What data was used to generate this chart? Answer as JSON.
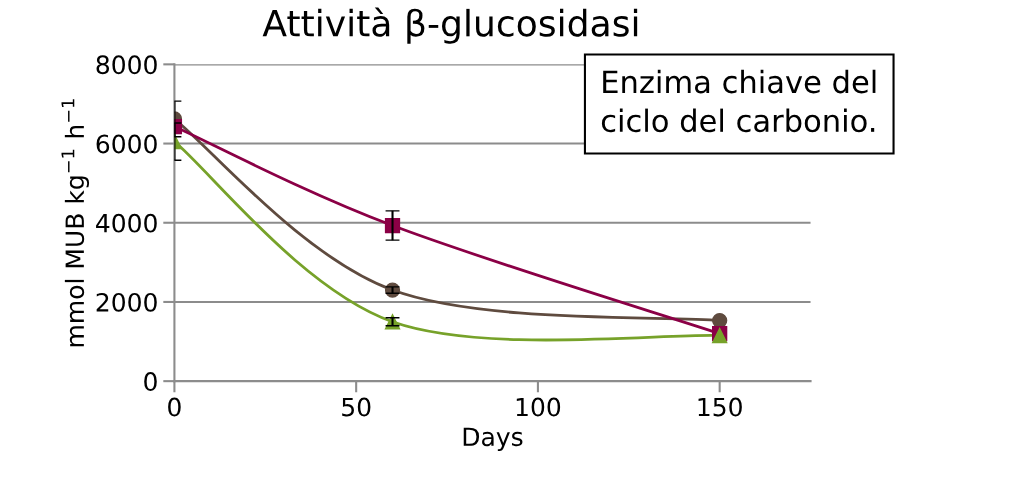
{
  "chart_data": {
    "type": "line",
    "title": "Attività β-glucosidasi",
    "xlabel": "Days",
    "ylabel": "mmol MUB kg$^{−1}$ h$^{−1}$",
    "x": [
      0,
      60,
      150
    ],
    "series": [
      {
        "color": "#5f4b3f",
        "marker": "circle",
        "values": [
          6620,
          2300,
          1530
        ],
        "errors": [
          450,
          80,
          null
        ]
      },
      {
        "color": "#8b0046",
        "marker": "square",
        "values": [
          6430,
          3930,
          1200
        ],
        "errors": [
          null,
          370,
          null
        ]
      },
      {
        "color": "#77a22a",
        "marker": "triangle",
        "values": [
          6050,
          1500,
          1150
        ],
        "errors": [
          470,
          100,
          null
        ]
      }
    ],
    "xlim": [
      0,
      175
    ],
    "xticks": [
      0,
      50,
      100,
      150
    ],
    "ylim": [
      0,
      8000
    ],
    "yticks": [
      0,
      2000,
      4000,
      6000,
      8000
    ],
    "grid": "y",
    "legend": false,
    "annotations": [
      "Enzima chiave del\nciclo del carbonio."
    ]
  }
}
